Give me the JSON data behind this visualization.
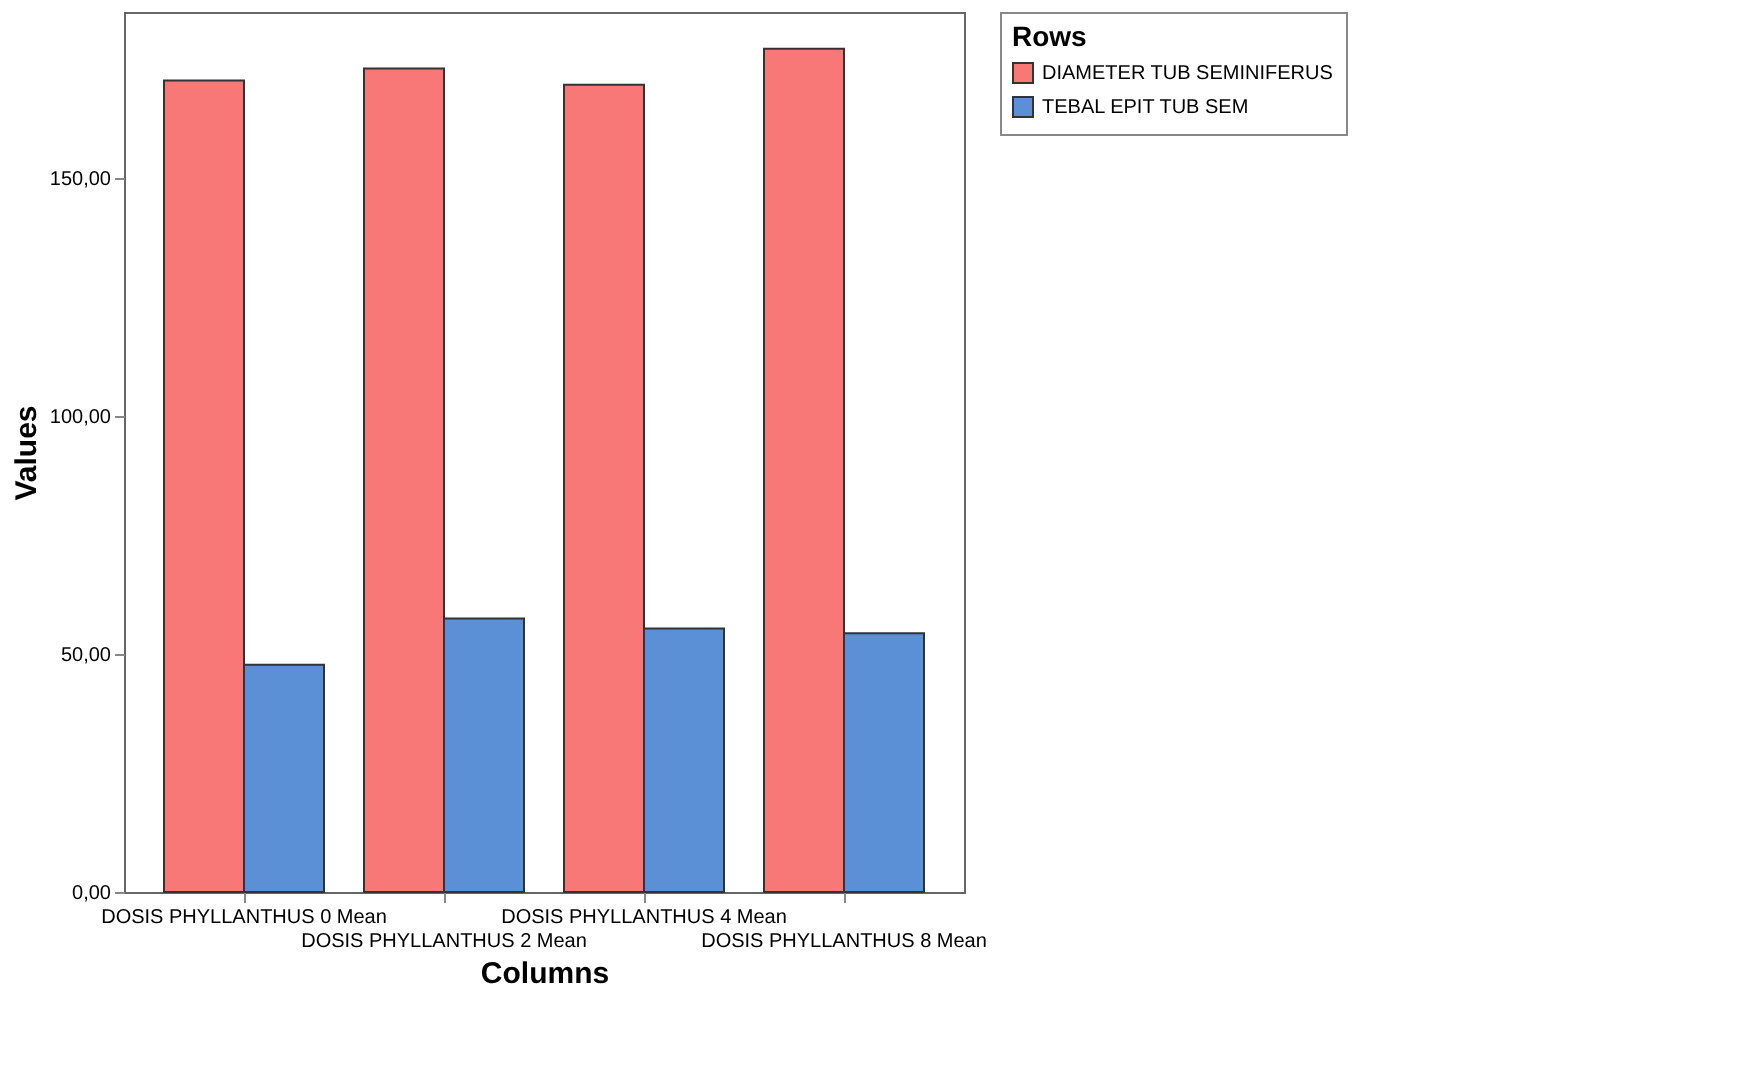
{
  "chart_data": {
    "type": "bar",
    "xlabel": "Columns",
    "ylabel": "Values",
    "legend_title": "Rows",
    "legend": "top right",
    "grid": false,
    "categories": [
      "DOSIS PHYLLANTHUS 0 Mean",
      "DOSIS PHYLLANTHUS 2 Mean",
      "DOSIS PHYLLANTHUS 4 Mean",
      "DOSIS PHYLLANTHUS 8 Mean"
    ],
    "series": [
      {
        "name": "DIAMETER TUB SEMINIFERUS",
        "color": "#f87878",
        "values": [
          170.6,
          173.1,
          169.7,
          177.3
        ]
      },
      {
        "name": "TEBAL EPIT TUB SEM",
        "color": "#5b8fd6",
        "values": [
          47.8,
          57.5,
          55.4,
          54.4
        ]
      }
    ],
    "ylim": [
      0,
      185
    ],
    "yticks": [
      {
        "value": 0,
        "label": "0,00"
      },
      {
        "value": 50,
        "label": "50,00"
      },
      {
        "value": 100,
        "label": "100,00"
      },
      {
        "value": 150,
        "label": "150,00"
      }
    ]
  }
}
